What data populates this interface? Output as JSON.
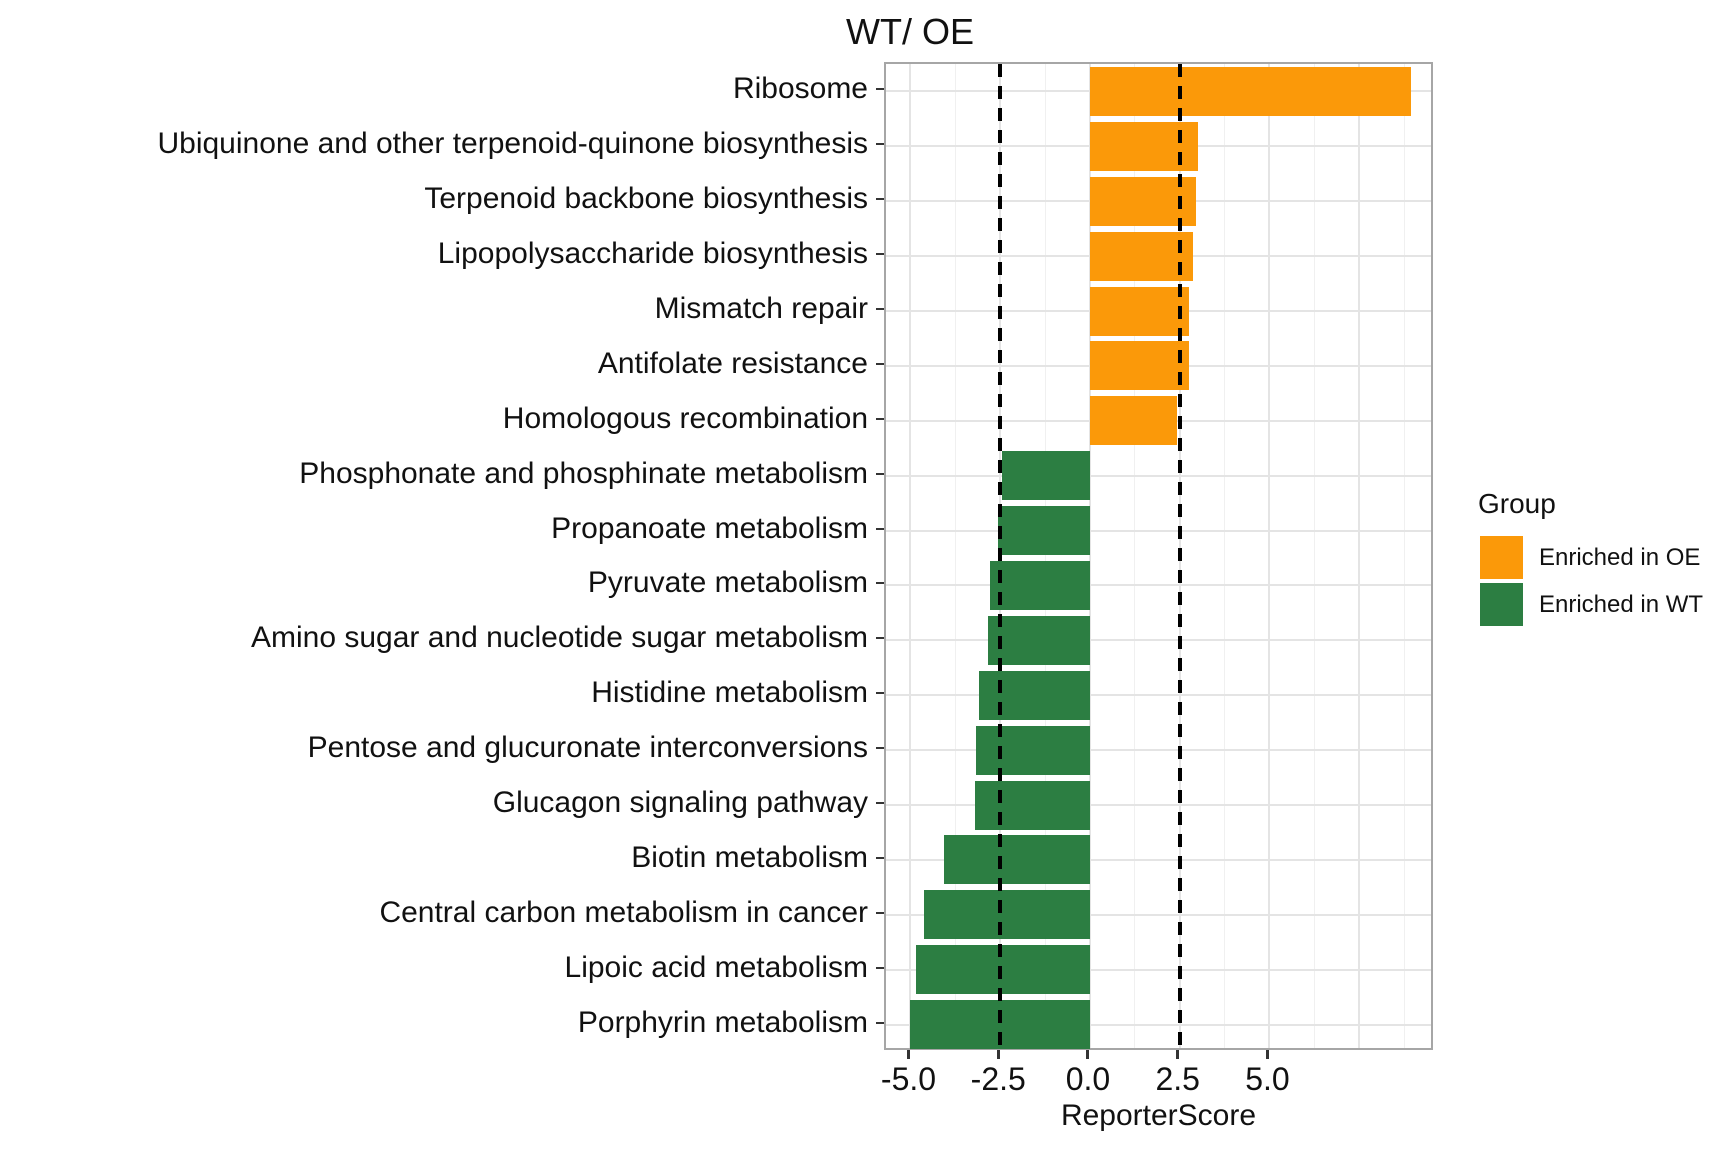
{
  "title": "WT/ OE",
  "chart_data": {
    "type": "bar",
    "orientation": "horizontal",
    "title": "WT/ OE",
    "xlabel": "ReporterScore",
    "ylabel": "",
    "xlim": [
      -5.68,
      9.61
    ],
    "x_ticks": [
      -5.0,
      -2.5,
      0.0,
      2.5,
      5.0
    ],
    "x_tick_labels": [
      "-5.0",
      "-2.5",
      "0.0",
      "2.5",
      "5.0"
    ],
    "x_major_gridlines": [
      -5.0,
      -2.5,
      0.0,
      2.5,
      5.0,
      7.5
    ],
    "x_minor_gridlines": [
      -3.75,
      -1.25,
      1.25,
      3.75,
      6.25,
      8.75
    ],
    "grid": true,
    "reference_lines": {
      "values": [
        -2.5,
        2.5
      ],
      "style": "dashed",
      "color": "#000000"
    },
    "colors": {
      "enriched_in_oe": "#FB9909",
      "enriched_in_wt": "#2C7E42"
    },
    "legend": {
      "title": "Group",
      "position": "right",
      "entries": [
        {
          "label": "Enriched in OE",
          "color": "#FB9909"
        },
        {
          "label": "Enriched in WT",
          "color": "#2C7E42"
        }
      ]
    },
    "bars": [
      {
        "category": "Ribosome",
        "value": 8.94,
        "group": "Enriched in OE"
      },
      {
        "category": "Ubiquinone and other terpenoid-quinone biosynthesis",
        "value": 3.01,
        "group": "Enriched in OE"
      },
      {
        "category": "Terpenoid backbone biosynthesis",
        "value": 2.96,
        "group": "Enriched in OE"
      },
      {
        "category": "Lipopolysaccharide biosynthesis",
        "value": 2.87,
        "group": "Enriched in OE"
      },
      {
        "category": "Mismatch repair",
        "value": 2.77,
        "group": "Enriched in OE"
      },
      {
        "category": "Antifolate resistance",
        "value": 2.75,
        "group": "Enriched in OE"
      },
      {
        "category": "Homologous recombination",
        "value": 2.42,
        "group": "Enriched in OE"
      },
      {
        "category": "Phosphonate and phosphinate metabolism",
        "value": -2.45,
        "group": "Enriched in WT"
      },
      {
        "category": "Propanoate metabolism",
        "value": -2.56,
        "group": "Enriched in WT"
      },
      {
        "category": "Pyruvate metabolism",
        "value": -2.79,
        "group": "Enriched in WT"
      },
      {
        "category": "Amino sugar and nucleotide sugar metabolism",
        "value": -2.84,
        "group": "Enriched in WT"
      },
      {
        "category": "Histidine metabolism",
        "value": -3.09,
        "group": "Enriched in WT"
      },
      {
        "category": "Pentose and glucuronate interconversions",
        "value": -3.18,
        "group": "Enriched in WT"
      },
      {
        "category": "Glucagon signaling pathway",
        "value": -3.21,
        "group": "Enriched in WT"
      },
      {
        "category": "Biotin metabolism",
        "value": -4.07,
        "group": "Enriched in WT"
      },
      {
        "category": "Central carbon metabolism in cancer",
        "value": -4.62,
        "group": "Enriched in WT"
      },
      {
        "category": "Lipoic acid metabolism",
        "value": -4.86,
        "group": "Enriched in WT"
      },
      {
        "category": "Porphyrin metabolism",
        "value": -5.02,
        "group": "Enriched in WT"
      }
    ]
  }
}
